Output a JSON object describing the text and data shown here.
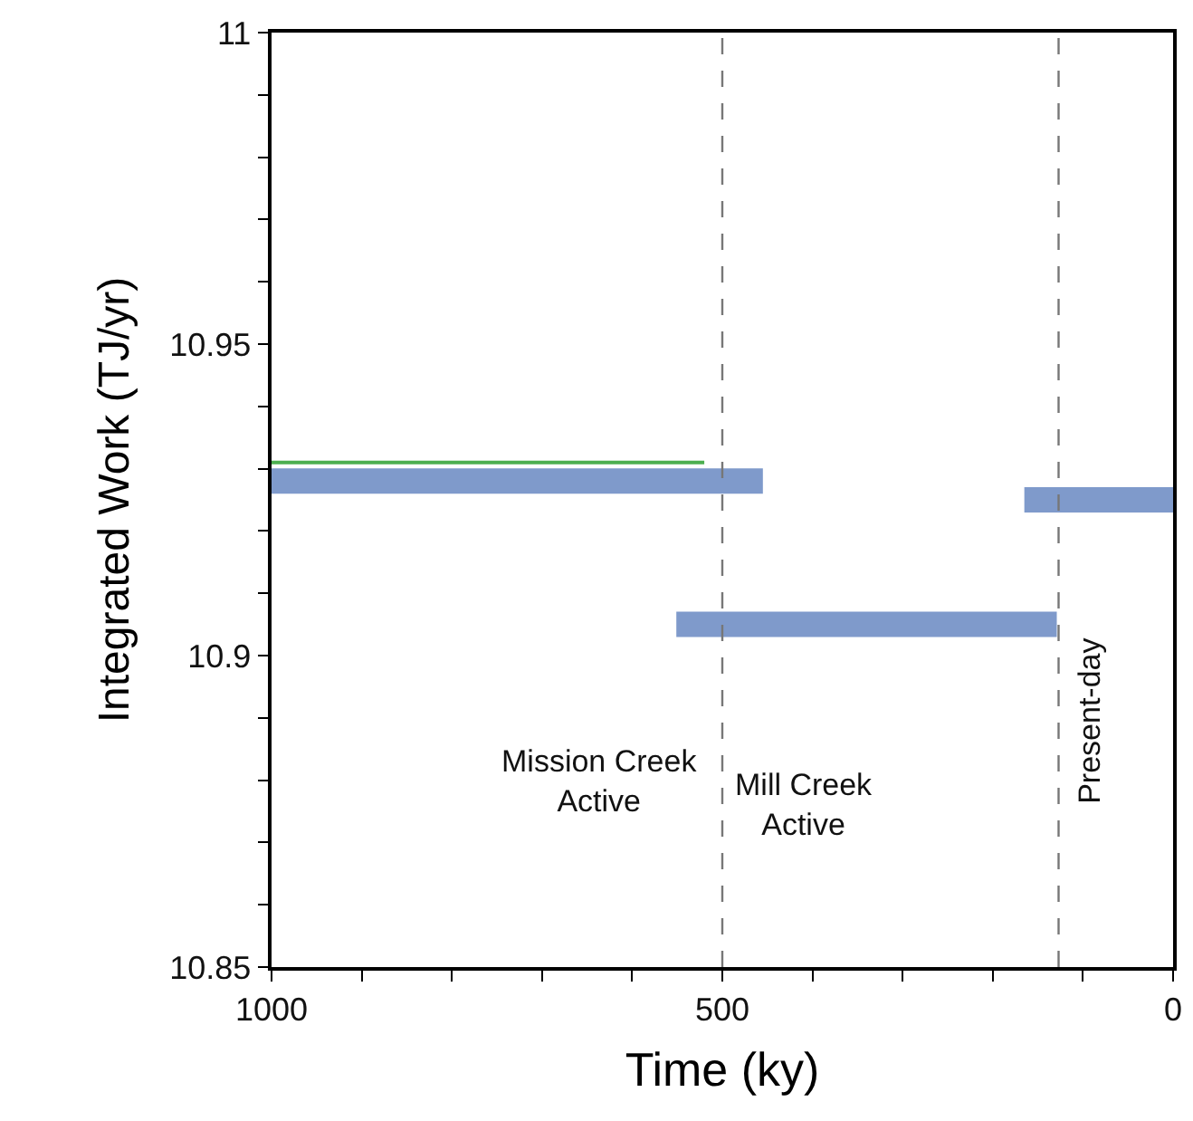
{
  "chart_data": {
    "type": "line",
    "xlabel": "Time (ky)",
    "ylabel": "Integrated Work (TJ/yr)",
    "xlim": [
      1000,
      0
    ],
    "ylim": [
      10.85,
      11
    ],
    "xticks": [
      1000,
      {
        "value": 900,
        "label": null
      },
      {
        "value": 800,
        "label": null
      },
      {
        "value": 700,
        "label": null
      },
      {
        "value": 600,
        "label": null
      },
      500,
      {
        "value": 400,
        "label": null
      },
      {
        "value": 300,
        "label": null
      },
      {
        "value": 200,
        "label": null
      },
      {
        "value": 100,
        "label": null
      },
      0
    ],
    "yticks": [
      10.85,
      {
        "value": 10.86,
        "label": null
      },
      {
        "value": 10.87,
        "label": null
      },
      {
        "value": 10.88,
        "label": null
      },
      {
        "value": 10.89,
        "label": null
      },
      10.9,
      {
        "value": 10.91,
        "label": null
      },
      {
        "value": 10.92,
        "label": null
      },
      {
        "value": 10.93,
        "label": null
      },
      {
        "value": 10.94,
        "label": null
      },
      10.95,
      {
        "value": 10.96,
        "label": null
      },
      {
        "value": 10.97,
        "label": null
      },
      {
        "value": 10.98,
        "label": null
      },
      {
        "value": 10.99,
        "label": null
      },
      11
    ],
    "series": [
      {
        "color": "#7f9acb",
        "x": [
          1000,
          455
        ],
        "values": [
          10.928,
          10.928
        ]
      },
      {
        "color": "#4caf50",
        "x": [
          1000,
          520
        ],
        "values": [
          10.931,
          10.931
        ]
      },
      {
        "color": "#7f9acb",
        "x": [
          551,
          129
        ],
        "values": [
          10.905,
          10.905
        ]
      },
      {
        "color": "#7f9acb",
        "x": [
          165,
          0
        ],
        "values": [
          10.925,
          10.925
        ]
      }
    ],
    "ref_lines": [
      {
        "axis": "x",
        "value": 500,
        "color": "#777777",
        "line_style": "dashed"
      },
      {
        "axis": "x",
        "value": 127,
        "color": "#777777",
        "line_style": "dashed"
      }
    ],
    "annotations": [
      "Mission Creek\nActive",
      "Mill Creek\nActive",
      "Present-day"
    ],
    "marker": "none"
  }
}
